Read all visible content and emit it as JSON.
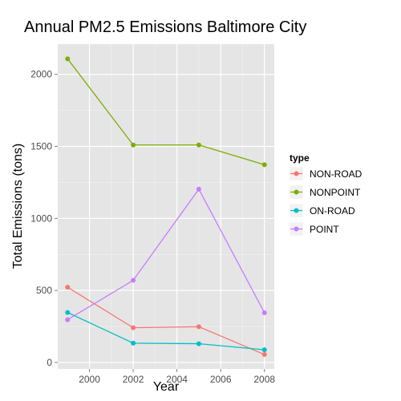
{
  "chart_data": {
    "type": "line",
    "title": "Annual PM2.5 Emissions Baltimore City",
    "xlabel": "Year",
    "ylabel": "Total Emissions (tons)",
    "x": [
      1999,
      2002,
      2005,
      2008
    ],
    "xticks": [
      2000,
      2002,
      2004,
      2006,
      2008
    ],
    "yticks": [
      0,
      500,
      1000,
      1500,
      2000
    ],
    "xlim": [
      1998.55,
      2008.45
    ],
    "ylim": [
      -45,
      2210
    ],
    "grid": true,
    "legend_title": "type",
    "legend_position": "right",
    "series": [
      {
        "name": "NON-ROAD",
        "color": "#F8766D",
        "values": [
          522,
          241,
          248,
          55
        ]
      },
      {
        "name": "NONPOINT",
        "color": "#7CAE00",
        "values": [
          2108,
          1510,
          1510,
          1373
        ]
      },
      {
        "name": "ON-ROAD",
        "color": "#00BFC4",
        "values": [
          347,
          134,
          130,
          88
        ]
      },
      {
        "name": "POINT",
        "color": "#C77CFF",
        "values": [
          297,
          570,
          1203,
          345
        ]
      }
    ]
  }
}
